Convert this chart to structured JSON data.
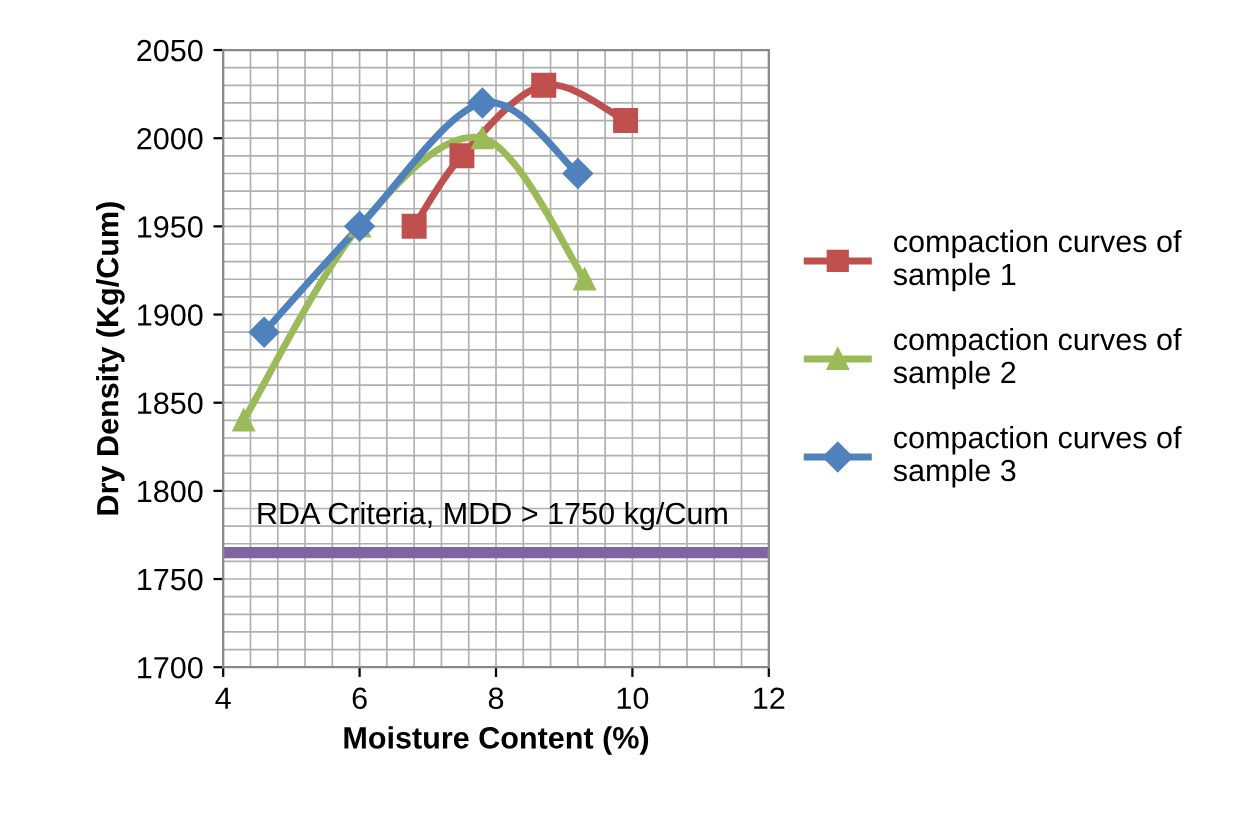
{
  "chart_data": {
    "type": "line",
    "xlabel": "Moisture Content (%)",
    "ylabel": "Dry Density (Kg/Cum)",
    "series": [
      {
        "name": "compaction curves of sample 1",
        "color": "#c0504d",
        "marker": "square",
        "x": [
          6.8,
          7.5,
          8.7,
          9.9
        ],
        "values": [
          1950,
          1990,
          2030,
          2010
        ]
      },
      {
        "name": "compaction curves of sample 2",
        "color": "#9bbb59",
        "marker": "triangle",
        "x": [
          4.3,
          6,
          7.8,
          9.3
        ],
        "values": [
          1840,
          1950,
          2000,
          1920
        ]
      },
      {
        "name": "compaction curves of sample 3",
        "color": "#4f81bd",
        "marker": "diamond",
        "x": [
          4.6,
          6,
          7.8,
          9.2
        ],
        "values": [
          1890,
          1950,
          2020,
          1980
        ]
      }
    ],
    "ref_lines": [
      {
        "axis": "y",
        "value": 1765,
        "label": "RDA Criteria, MDD > 1750 kg/Cum",
        "color": "#8064a2"
      }
    ],
    "xlim": [
      4,
      12
    ],
    "xticks": [
      4,
      6,
      8,
      10,
      12
    ],
    "ylim": [
      1700,
      2050
    ],
    "yticks": [
      1700,
      1750,
      1800,
      1850,
      1900,
      1950,
      2000,
      2050
    ],
    "grid": true,
    "legend": "right"
  }
}
